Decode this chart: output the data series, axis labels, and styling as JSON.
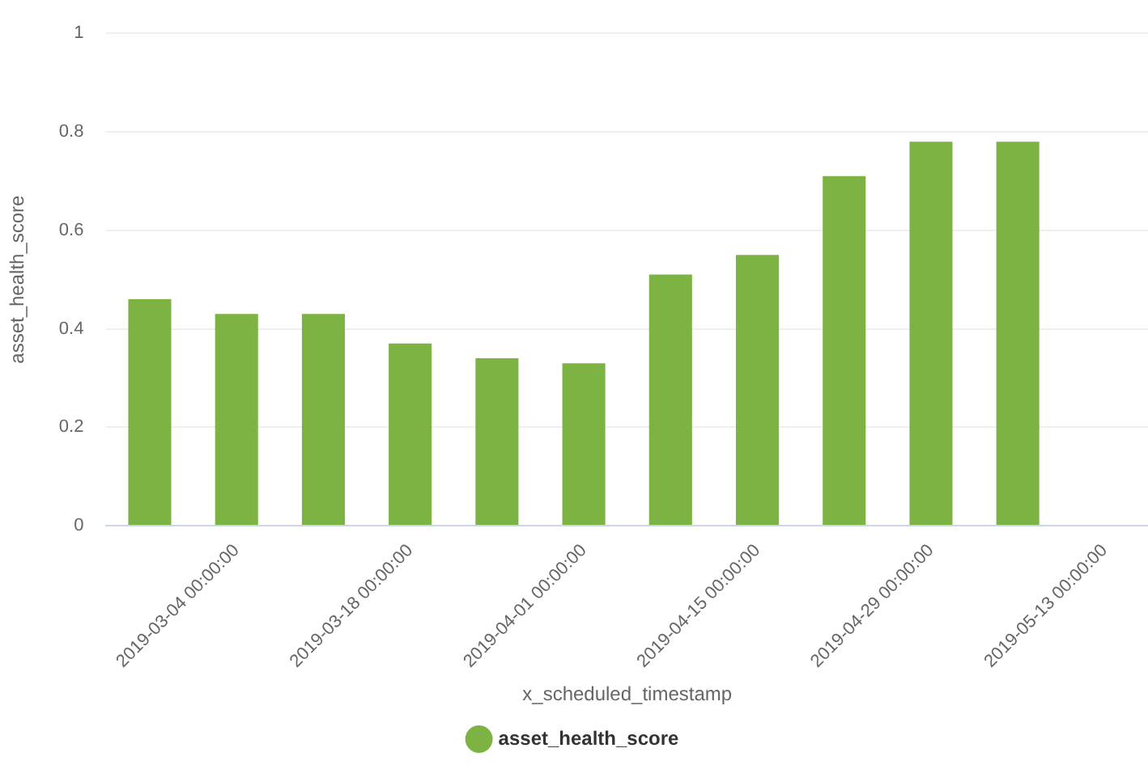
{
  "chart_data": {
    "type": "bar",
    "xlabel": "x_scheduled_timestamp",
    "ylabel": "asset_health_score",
    "categories": [
      null,
      "2019-03-04 00:00:00",
      null,
      "2019-03-18 00:00:00",
      null,
      "2019-04-01 00:00:00",
      null,
      "2019-04-15 00:00:00",
      null,
      "2019-04-29 00:00:00",
      null,
      "2019-05-13 00:00:00"
    ],
    "series": [
      {
        "name": "asset_health_score",
        "color": "#7cb342",
        "values": [
          0.46,
          0.43,
          0.43,
          0.37,
          0.34,
          0.33,
          0.51,
          0.55,
          0.71,
          0.78,
          0.78,
          null
        ]
      }
    ],
    "ylim": [
      0,
      1
    ],
    "yticks": [
      0,
      0.2,
      0.4,
      0.6,
      0.8,
      1
    ],
    "grid": "y",
    "legend": "bottom"
  }
}
